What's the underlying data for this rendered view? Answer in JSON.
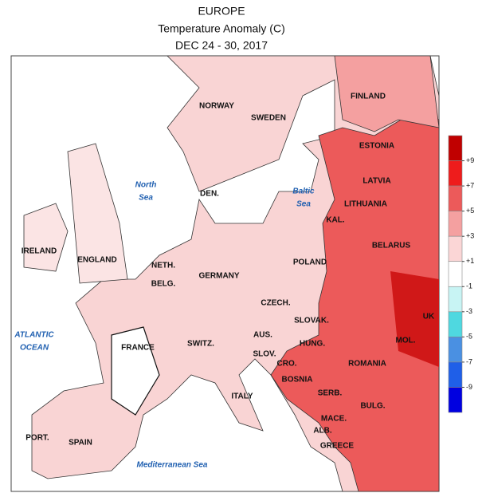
{
  "header": {
    "title": "EUROPE",
    "subtitle": "Temperature Anomaly (C)",
    "period": "DEC 24 - 30, 2017"
  },
  "countries": [
    "NORWAY",
    "SWEDEN",
    "FINLAND",
    "ESTONIA",
    "LATVIA",
    "LITHUANIA",
    "KAL.",
    "BELARUS",
    "DEN.",
    "IRELAND",
    "ENGLAND",
    "NETH.",
    "BELG.",
    "GERMANY",
    "POLAND",
    "CZECH.",
    "SLOVAK.",
    "UK",
    "MOL.",
    "AUS.",
    "HUNG.",
    "FRANCE",
    "SWITZ.",
    "SLOV.",
    "CRO.",
    "ROMANIA",
    "BOSNIA",
    "SERB.",
    "BULG.",
    "ITALY",
    "MACE.",
    "ALB.",
    "GREECE",
    "PORT.",
    "SPAIN"
  ],
  "seas": [
    [
      "North",
      "Sea"
    ],
    [
      "Baltic",
      "Sea"
    ],
    [
      "ATLANTIC",
      "OCEAN"
    ],
    [
      "Mediterranean Sea"
    ]
  ],
  "colorbar": {
    "colors": [
      "#c00000",
      "#ee1c1c",
      "#ec5a5a",
      "#f4a0a0",
      "#fbd6d6",
      "#ffffff",
      "#c8f4f4",
      "#4fd8e0",
      "#4a90e2",
      "#1f5fe8",
      "#0000e0"
    ],
    "ticks": [
      {
        "value": 9,
        "label": "+9"
      },
      {
        "value": 7,
        "label": "+7"
      },
      {
        "value": 5,
        "label": "+5"
      },
      {
        "value": 3,
        "label": "+3"
      },
      {
        "value": 1,
        "label": "+1"
      },
      -1,
      -3,
      -5,
      -7,
      -9
    ]
  }
}
